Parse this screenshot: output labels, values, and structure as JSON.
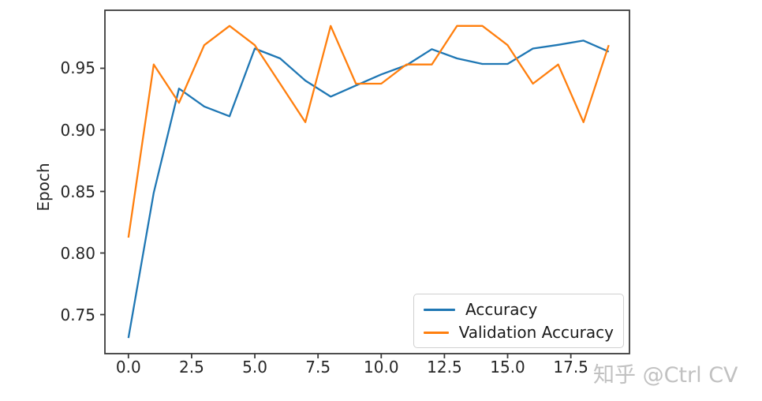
{
  "chart_data": {
    "type": "line",
    "title": "",
    "xlabel": "",
    "ylabel": "Epoch",
    "x": [
      0,
      1,
      2,
      3,
      4,
      5,
      6,
      7,
      8,
      9,
      10,
      11,
      12,
      13,
      14,
      15,
      16,
      17,
      18,
      19
    ],
    "series": [
      {
        "name": "Accuracy",
        "color": "#1f77b4",
        "values": [
          0.731,
          0.849,
          0.9335,
          0.919,
          0.911,
          0.966,
          0.958,
          0.94,
          0.927,
          0.936,
          0.945,
          0.9525,
          0.9655,
          0.958,
          0.9535,
          0.9535,
          0.966,
          0.969,
          0.9725,
          0.9635
        ]
      },
      {
        "name": "Validation Accuracy",
        "color": "#ff7f0e",
        "values": [
          0.8125,
          0.9531,
          0.9219,
          0.9688,
          0.9844,
          0.9688,
          0.9375,
          0.9062,
          0.9844,
          0.9375,
          0.9375,
          0.9531,
          0.9531,
          0.9844,
          0.9844,
          0.9688,
          0.9375,
          0.9531,
          0.9062,
          0.9688
        ]
      }
    ],
    "xlim": [
      -0.93,
      19.82
    ],
    "ylim": [
      0.7183,
      0.9971
    ],
    "x_tick_labels": [
      "0.0",
      "2.5",
      "5.0",
      "7.5",
      "10.0",
      "12.5",
      "15.0",
      "17.5"
    ],
    "x_tick_values": [
      0,
      2.5,
      5,
      7.5,
      10,
      12.5,
      15,
      17.5
    ],
    "y_tick_labels": [
      "0.75",
      "0.80",
      "0.85",
      "0.90",
      "0.95"
    ],
    "y_tick_values": [
      0.75,
      0.8,
      0.85,
      0.9,
      0.95
    ],
    "grid": false,
    "legend_position": "lower right"
  },
  "colors": {
    "spine": "#3b3b3b",
    "tick_label": "#262626",
    "background": "#ffffff"
  },
  "watermark": {
    "text": "知乎 @Ctrl CV",
    "color": "#c1c1c1"
  }
}
